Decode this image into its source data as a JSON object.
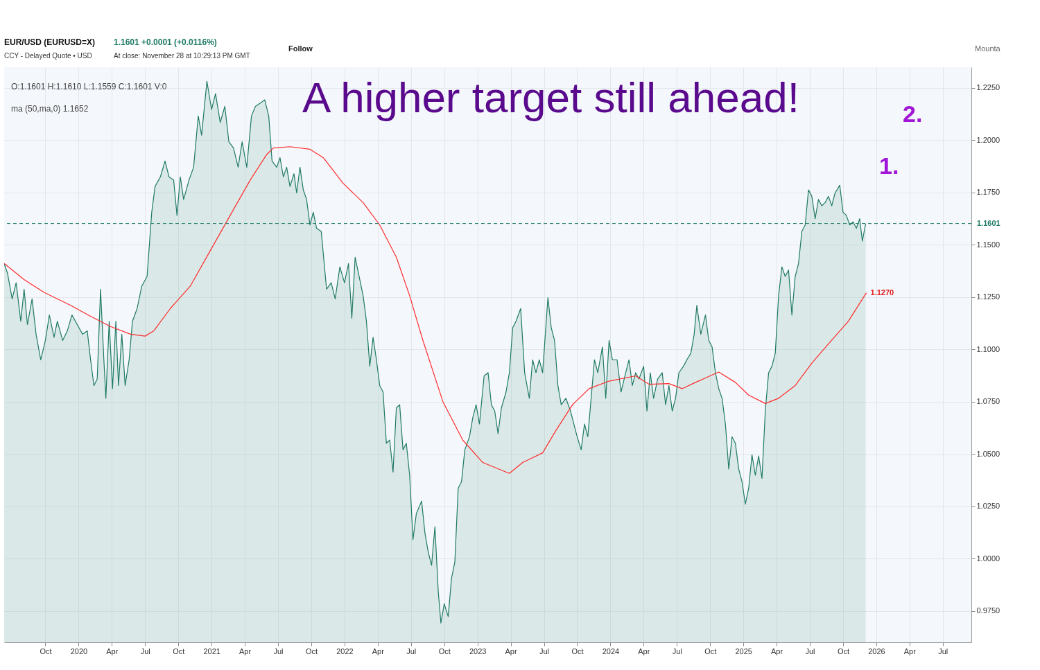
{
  "chart_data": {
    "type": "area",
    "title": "EUR/USD (EURUSD=X)",
    "subtitle": "CCY - Delayed Quote • USD",
    "annotations": [
      "1.1601 +0.0001 (+0.0116%)",
      "At close: November 28 at 10:29:13 PM GMT",
      "Follow",
      "Mounta",
      "O:1.1601  H:1.1610  L:1.1559  C:1.1601  V:0",
      "ma (50,ma,0)  1.1652",
      "A higher target still ahead!",
      {
        "text": "1.1270",
        "x": 2025.925,
        "y": 1.127
      },
      "1.",
      "2."
    ],
    "series": [
      {
        "color": "#1f7a65",
        "x": [
          2019.44,
          2019.465,
          2019.5,
          2019.53,
          2019.565,
          2019.59,
          2019.615,
          2019.65,
          2019.68,
          2019.715,
          2019.75,
          2019.78,
          2019.815,
          2019.84,
          2019.88,
          2019.915,
          2019.95,
          2019.99,
          2020.03,
          2020.065,
          2020.09,
          2020.115,
          2020.14,
          2020.165,
          2020.19,
          2020.205,
          2020.23,
          2020.255,
          2020.28,
          2020.3,
          2020.325,
          2020.35,
          2020.38,
          2020.405,
          2020.44,
          2020.475,
          2020.515,
          2020.55,
          2020.575,
          2020.615,
          2020.65,
          2020.68,
          2020.715,
          2020.74,
          2020.765,
          2020.79,
          2020.83,
          2020.865,
          2020.9,
          2020.925,
          2020.965,
          2021.0,
          2021.03,
          2021.065,
          2021.1,
          2021.13,
          2021.165,
          2021.2,
          2021.23,
          2021.265,
          2021.3,
          2021.33,
          2021.365,
          2021.4,
          2021.43,
          2021.455,
          2021.49,
          2021.515,
          2021.54,
          2021.565,
          2021.59,
          2021.62,
          2021.64,
          2021.665,
          2021.69,
          2021.715,
          2021.74,
          2021.765,
          2021.79,
          2021.825,
          2021.865,
          2021.9,
          2021.93,
          2021.965,
          2022.0,
          2022.03,
          2022.055,
          2022.08,
          2022.115,
          2022.14,
          2022.165,
          2022.19,
          2022.215,
          2022.24,
          2022.265,
          2022.29,
          2022.315,
          2022.34,
          2022.365,
          2022.39,
          2022.415,
          2022.44,
          2022.465,
          2022.49,
          2022.515,
          2022.54,
          2022.58,
          2022.605,
          2022.63,
          2022.655,
          2022.68,
          2022.705,
          2022.725,
          2022.75,
          2022.78,
          2022.805,
          2022.83,
          2022.855,
          2022.88,
          2022.905,
          2022.94,
          2022.965,
          2022.99,
          2023.015,
          2023.05,
          2023.08,
          2023.105,
          2023.13,
          2023.155,
          2023.18,
          2023.215,
          2023.24,
          2023.265,
          2023.29,
          2023.325,
          2023.355,
          2023.39,
          2023.415,
          2023.44,
          2023.465,
          2023.49,
          2023.53,
          2023.555,
          2023.58,
          2023.605,
          2023.63,
          2023.665,
          2023.7,
          2023.725,
          2023.75,
          2023.78,
          2023.805,
          2023.83,
          2023.855,
          2023.88,
          2023.905,
          2023.94,
          2023.965,
          2023.99,
          2024.015,
          2024.05,
          2024.08,
          2024.115,
          2024.14,
          2024.165,
          2024.19,
          2024.215,
          2024.25,
          2024.275,
          2024.3,
          2024.325,
          2024.355,
          2024.39,
          2024.415,
          2024.44,
          2024.465,
          2024.49,
          2024.515,
          2024.55,
          2024.575,
          2024.605,
          2024.63,
          2024.65,
          2024.68,
          2024.715,
          2024.74,
          2024.765,
          2024.79,
          2024.815,
          2024.84,
          2024.865,
          2024.89,
          2024.915,
          2024.94,
          2024.965,
          2024.99,
          2025.015,
          2025.04,
          2025.065,
          2025.09,
          2025.115,
          2025.14,
          2025.165,
          2025.19,
          2025.215,
          2025.24,
          2025.265,
          2025.29,
          2025.315,
          2025.34,
          2025.365,
          2025.39,
          2025.415,
          2025.44,
          2025.465,
          2025.49,
          2025.515,
          2025.54,
          2025.565,
          2025.59,
          2025.615,
          2025.64,
          2025.665,
          2025.69,
          2025.725,
          2025.75,
          2025.775,
          2025.8,
          2025.825,
          2025.85,
          2025.875,
          2025.895,
          2025.92
        ],
        "values": [
          1.141,
          1.1364,
          1.1241,
          1.1318,
          1.1134,
          1.1287,
          1.1118,
          1.1241,
          1.1072,
          1.095,
          1.1042,
          1.1164,
          1.1057,
          1.1134,
          1.1042,
          1.1088,
          1.1164,
          1.1118,
          1.1072,
          1.1088,
          1.095,
          1.0827,
          1.0858,
          1.1287,
          1.095,
          1.0766,
          1.1134,
          1.0812,
          1.1134,
          1.0827,
          1.1072,
          1.0827,
          1.095,
          1.1134,
          1.1195,
          1.1302,
          1.1348,
          1.1655,
          1.1778,
          1.1824,
          1.19,
          1.1824,
          1.1808,
          1.164,
          1.1824,
          1.1716,
          1.1808,
          1.187,
          1.2115,
          1.2023,
          1.2281,
          1.2146,
          1.2222,
          1.2084,
          1.2161,
          1.1992,
          1.1962,
          1.187,
          1.1992,
          1.187,
          1.2115,
          1.2161,
          1.2176,
          1.2192,
          1.2115,
          1.19,
          1.187,
          1.1916,
          1.1824,
          1.187,
          1.1778,
          1.1839,
          1.1747,
          1.187,
          1.1762,
          1.1716,
          1.1594,
          1.1655,
          1.1578,
          1.1563,
          1.1287,
          1.1318,
          1.1241,
          1.1394,
          1.1318,
          1.141,
          1.1149,
          1.144,
          1.1333,
          1.1256,
          1.1134,
          1.0919,
          1.1057,
          1.095,
          1.0827,
          1.0796,
          1.0551,
          1.0566,
          1.0413,
          1.072,
          1.0735,
          1.052,
          1.0551,
          1.0398,
          1.0091,
          1.0214,
          1.0275,
          1.0122,
          1.003,
          0.9968,
          1.0152,
          0.9845,
          0.9692,
          0.9784,
          0.9723,
          0.9907,
          0.9984,
          1.0336,
          1.0367,
          1.052,
          1.0582,
          1.0674,
          1.0735,
          1.0643,
          1.0873,
          1.0888,
          1.0735,
          1.0705,
          1.0597,
          1.072,
          1.0796,
          1.0888,
          1.1103,
          1.1134,
          1.1195,
          1.0888,
          1.0766,
          1.095,
          1.0888,
          1.095,
          1.0888,
          1.1247,
          1.1103,
          1.1042,
          1.0827,
          1.0735,
          1.0766,
          1.0705,
          1.0643,
          1.0582,
          1.052,
          1.0643,
          1.0582,
          1.0766,
          1.095,
          1.0888,
          1.1011,
          1.0766,
          1.1042,
          1.095,
          1.095,
          1.0796,
          1.0888,
          1.095,
          1.0827,
          1.0888,
          1.0858,
          1.0919,
          1.0705,
          1.0888,
          1.0766,
          1.0858,
          1.0888,
          1.0735,
          1.0827,
          1.0705,
          1.0766,
          1.0888,
          1.0919,
          1.095,
          1.0981,
          1.1072,
          1.121,
          1.1072,
          1.1164,
          1.1042,
          1.1011,
          1.0888,
          1.0812,
          1.0766,
          1.0643,
          1.0428,
          1.0582,
          1.0551,
          1.0428,
          1.0367,
          1.026,
          1.0336,
          1.0496,
          1.0398,
          1.049,
          1.0383,
          1.0705,
          1.0888,
          1.0919,
          1.0981,
          1.1256,
          1.1394,
          1.1348,
          1.1379,
          1.1164,
          1.1348,
          1.141,
          1.1563,
          1.1594,
          1.1762,
          1.1731,
          1.1624,
          1.1716,
          1.1686,
          1.1701,
          1.1731,
          1.1686,
          1.1747,
          1.1784,
          1.1655,
          1.164,
          1.1594,
          1.1609,
          1.1578,
          1.1624,
          1.1517,
          1.1601
        ]
      },
      {
        "type": "line",
        "color": "#ff2b2b",
        "x": [
          2019.44,
          2019.59,
          2019.74,
          2019.94,
          2020.09,
          2020.24,
          2020.39,
          2020.5,
          2020.565,
          2020.69,
          2020.84,
          2020.99,
          2021.14,
          2021.29,
          2021.415,
          2021.465,
          2021.59,
          2021.74,
          2021.84,
          2021.99,
          2022.14,
          2022.265,
          2022.39,
          2022.49,
          2022.59,
          2022.74,
          2022.89,
          2023.04,
          2023.24,
          2023.34,
          2023.49,
          2023.59,
          2023.715,
          2023.84,
          2023.99,
          2024.19,
          2024.29,
          2024.44,
          2024.54,
          2024.64,
          2024.815,
          2024.94,
          2025.04,
          2025.165,
          2025.265,
          2025.39,
          2025.515,
          2025.64,
          2025.79,
          2025.925
        ],
        "values": [
          1.141,
          1.1333,
          1.1272,
          1.121,
          1.1158,
          1.1109,
          1.1072,
          1.1063,
          1.1088,
          1.1195,
          1.1302,
          1.1471,
          1.164,
          1.1808,
          1.1931,
          1.1962,
          1.1968,
          1.1956,
          1.1916,
          1.1793,
          1.1701,
          1.1594,
          1.144,
          1.1256,
          1.1042,
          1.075,
          1.0566,
          1.0459,
          1.0407,
          1.0459,
          1.0505,
          1.0612,
          1.0735,
          1.0812,
          1.0848,
          1.0873,
          1.0833,
          1.0836,
          1.0812,
          1.0842,
          1.0891,
          1.0842,
          1.0781,
          1.0741,
          1.0766,
          1.0827,
          1.0934,
          1.1026,
          1.1134,
          1.127
        ]
      }
    ],
    "xlim": [
      2019.44,
      2026.715
    ],
    "xticks": [
      {
        "value": 2019.75,
        "label": "Oct"
      },
      {
        "value": 2020,
        "label": "2020"
      },
      {
        "value": 2020.25,
        "label": "Apr"
      },
      {
        "value": 2020.5,
        "label": "Jul"
      },
      {
        "value": 2020.75,
        "label": "Oct"
      },
      {
        "value": 2021,
        "label": "2021"
      },
      {
        "value": 2021.25,
        "label": "Apr"
      },
      {
        "value": 2021.5,
        "label": "Jul"
      },
      {
        "value": 2021.75,
        "label": "Oct"
      },
      {
        "value": 2022,
        "label": "2022"
      },
      {
        "value": 2022.25,
        "label": "Apr"
      },
      {
        "value": 2022.5,
        "label": "Jul"
      },
      {
        "value": 2022.75,
        "label": "Oct"
      },
      {
        "value": 2023,
        "label": "2023"
      },
      {
        "value": 2023.25,
        "label": "Apr"
      },
      {
        "value": 2023.5,
        "label": "Jul"
      },
      {
        "value": 2023.75,
        "label": "Oct"
      },
      {
        "value": 2024,
        "label": "2024"
      },
      {
        "value": 2024.25,
        "label": "Apr"
      },
      {
        "value": 2024.5,
        "label": "Jul"
      },
      {
        "value": 2024.75,
        "label": "Oct"
      },
      {
        "value": 2025,
        "label": "2025"
      },
      {
        "value": 2025.25,
        "label": "Apr"
      },
      {
        "value": 2025.5,
        "label": "Jul"
      },
      {
        "value": 2025.75,
        "label": "Oct"
      },
      {
        "value": 2026,
        "label": "2026"
      },
      {
        "value": 2026.25,
        "label": "Apr"
      },
      {
        "value": 2026.5,
        "label": "Jul"
      }
    ],
    "ylim": [
      0.96,
      1.2348
    ],
    "yticks": [
      {
        "value": 0.975,
        "label": "0.9750"
      },
      {
        "value": 1.0,
        "label": "1.0000"
      },
      {
        "value": 1.025,
        "label": "1.0250"
      },
      {
        "value": 1.05,
        "label": "1.0500"
      },
      {
        "value": 1.075,
        "label": "1.0750"
      },
      {
        "value": 1.1,
        "label": "1.1000"
      },
      {
        "value": 1.125,
        "label": "1.1250"
      },
      {
        "value": 1.15,
        "label": "1.1500"
      },
      {
        "value": 1.175,
        "label": "1.1750"
      },
      {
        "value": 1.2,
        "label": "1.2000"
      },
      {
        "value": 1.225,
        "label": "1.2250"
      }
    ],
    "grid": true,
    "ref_lines": [
      {
        "axis": "y",
        "value": 1.1601,
        "label": "1.1601",
        "color": "#1f7a65",
        "line_style": "dashed"
      }
    ]
  }
}
